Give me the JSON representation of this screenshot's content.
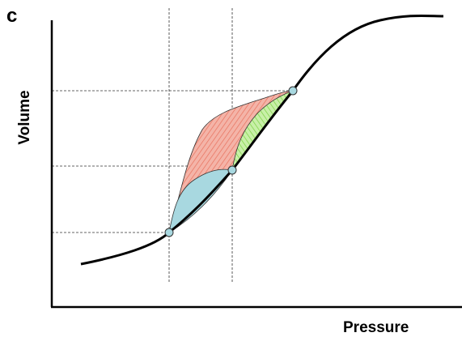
{
  "panel_label": "c",
  "axes": {
    "x_label": "Pressure",
    "y_label": "Volume"
  },
  "regions": {
    "total_area_color": "#f4b4a8",
    "total_hatch_color": "#e8705c",
    "lower_area_color": "#a8d8e0",
    "upper_area_color": "#c8f0a8",
    "upper_hatch_color": "#7ad040"
  },
  "points": {
    "fill_color": "#a8d8e0",
    "count": 3
  },
  "guide_lines": {
    "vertical_count": 2,
    "horizontal_count": 3,
    "style": "dashed"
  }
}
